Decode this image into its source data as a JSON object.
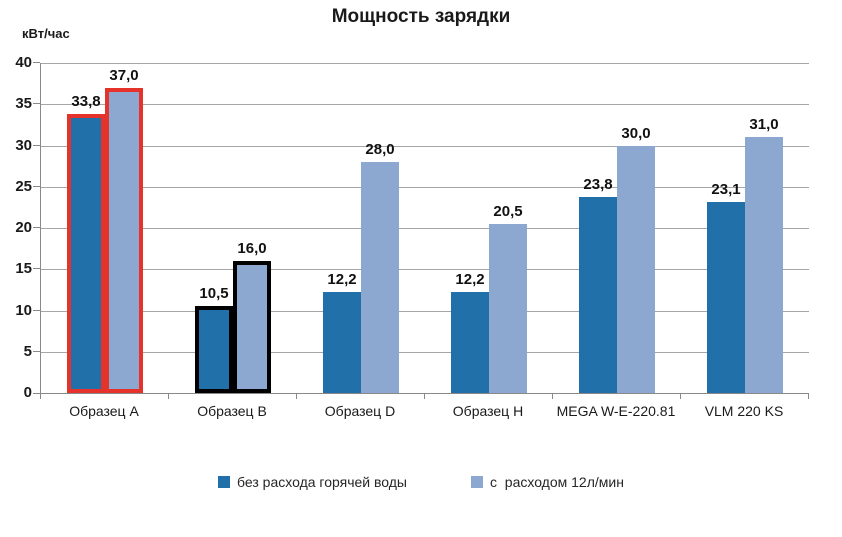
{
  "title": "Мощность зарядки",
  "y_axis_unit": "кВт/час",
  "chart_data": {
    "type": "bar",
    "title": "Мощность зарядки",
    "ylabel": "кВт/час",
    "xlabel": "",
    "ylim": [
      0,
      40
    ],
    "ytick_step": 5,
    "grid": true,
    "legend_position": "bottom",
    "categories": [
      "Образец A",
      "Образец B",
      "Образец D",
      "Образец H",
      "MEGA W-E-220.81",
      "VLM 220 KS"
    ],
    "series": [
      {
        "name": "без расхода горячей воды",
        "color": "#2270A9",
        "values": [
          33.8,
          10.5,
          12.2,
          12.2,
          23.8,
          23.1
        ],
        "labels": [
          "33,8",
          "10,5",
          "12,2",
          "12,2",
          "23,8",
          "23,1"
        ]
      },
      {
        "name": "с  расходом 12л/мин",
        "color": "#8CA8D0",
        "values": [
          37.0,
          16.0,
          28.0,
          20.5,
          30.0,
          31.0
        ],
        "labels": [
          "37,0",
          "16,0",
          "28,0",
          "20,5",
          "30,0",
          "31,0"
        ]
      }
    ],
    "highlights": [
      {
        "category_index": 0,
        "outline_color": "#E5332B"
      },
      {
        "category_index": 1,
        "outline_color": "#000000"
      }
    ],
    "colors": {
      "gridline": "#a6a6a6",
      "axis": "#898989",
      "text": "#1a1a1a"
    }
  }
}
